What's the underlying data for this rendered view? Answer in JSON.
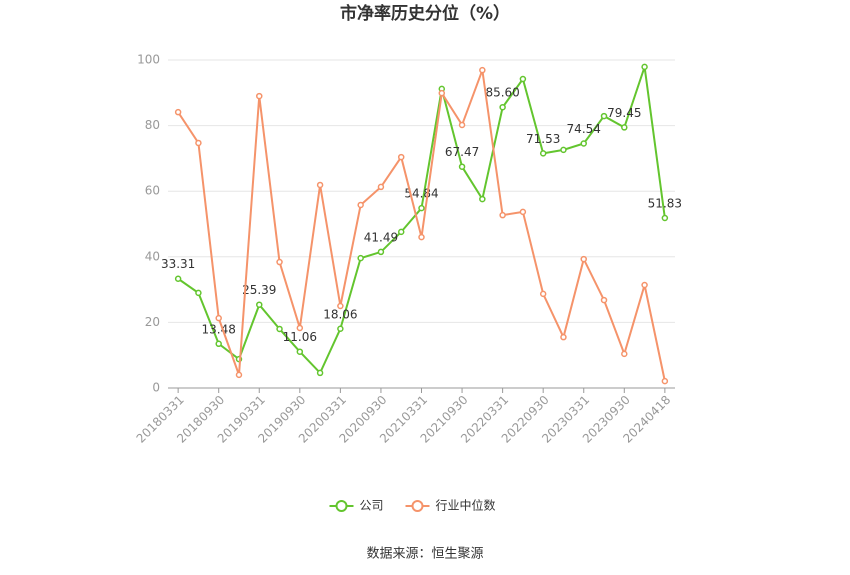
{
  "chart_data": {
    "type": "line",
    "title": "市净率历史分位（%）",
    "source": "数据来源：恒生聚源",
    "categories": [
      "20180331",
      null,
      "20180930",
      null,
      "20190331",
      null,
      "20190930",
      null,
      "20200331",
      null,
      "20200930",
      null,
      "20210331",
      null,
      "20210930",
      null,
      "20220331",
      null,
      "20220930",
      null,
      "20230331",
      null,
      "20230930",
      null,
      "20240418"
    ],
    "series": [
      {
        "name": "公司",
        "color": "#63c52e",
        "values": [
          33.31,
          29.0,
          13.48,
          8.8,
          25.39,
          18.0,
          11.06,
          4.6,
          18.06,
          39.6,
          41.49,
          47.6,
          54.84,
          91.2,
          67.47,
          57.6,
          85.6,
          94.2,
          71.53,
          72.6,
          74.54,
          82.9,
          79.45,
          97.9,
          51.83
        ],
        "value_labels": [
          "33.31",
          null,
          "13.48",
          null,
          "25.39",
          null,
          "11.06",
          null,
          "18.06",
          null,
          "41.49",
          null,
          "54.84",
          null,
          "67.47",
          null,
          "85.60",
          null,
          "71.53",
          null,
          "74.54",
          null,
          "79.45",
          null,
          "51.83"
        ]
      },
      {
        "name": "行业中位数",
        "color": "#f5936a",
        "values": [
          84.1,
          74.7,
          21.3,
          4.0,
          89.0,
          38.4,
          18.3,
          61.9,
          25.0,
          55.8,
          61.3,
          70.4,
          46.0,
          89.9,
          80.2,
          96.9,
          52.7,
          53.7,
          28.7,
          15.5,
          39.3,
          26.8,
          10.4,
          31.4,
          2.1
        ]
      }
    ],
    "ylim": [
      0,
      100
    ],
    "yticks": [
      0,
      20,
      40,
      60,
      80,
      100
    ],
    "grid": true,
    "legend": "bottom"
  }
}
